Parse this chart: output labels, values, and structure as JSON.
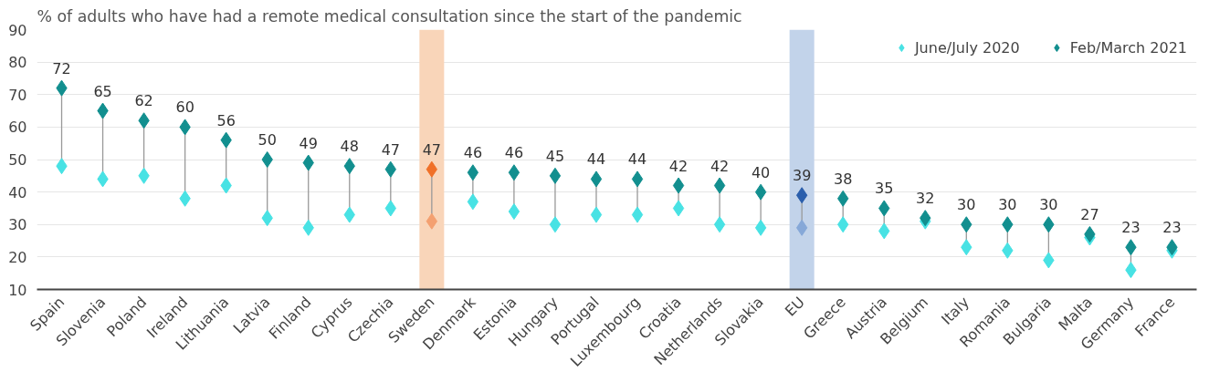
{
  "chart_data": {
    "type": "scatter",
    "title": "% of adults who have had a remote medical consultation since the start of the pandemic",
    "categories": [
      "Spain",
      "Slovenia",
      "Poland",
      "Ireland",
      "Lithuania",
      "Latvia",
      "Finland",
      "Cyprus",
      "Czechia",
      "Sweden",
      "Denmark",
      "Estonia",
      "Hungary",
      "Portugal",
      "Luxembourg",
      "Croatia",
      "Netherlands",
      "Slovakia",
      "EU",
      "Greece",
      "Austria",
      "Belgium",
      "Italy",
      "Romania",
      "Bulgaria",
      "Malta",
      "Germany",
      "France"
    ],
    "series": [
      {
        "name": "June/July 2020",
        "color": "#48e2e4",
        "colors": [
          "#48e2e4",
          "#48e2e4",
          "#48e2e4",
          "#48e2e4",
          "#48e2e4",
          "#48e2e4",
          "#48e2e4",
          "#48e2e4",
          "#48e2e4",
          "#f4a070",
          "#48e2e4",
          "#48e2e4",
          "#48e2e4",
          "#48e2e4",
          "#48e2e4",
          "#48e2e4",
          "#48e2e4",
          "#48e2e4",
          "#86a8d8",
          "#48e2e4",
          "#48e2e4",
          "#48e2e4",
          "#48e2e4",
          "#48e2e4",
          "#48e2e4",
          "#48e2e4",
          "#48e2e4",
          "#48e2e4"
        ],
        "values": [
          48,
          44,
          45,
          38,
          42,
          32,
          29,
          33,
          35,
          31,
          37,
          34,
          30,
          33,
          33,
          35,
          30,
          29,
          29,
          30,
          28,
          31,
          23,
          22,
          19,
          26,
          16,
          22
        ]
      },
      {
        "name": "Feb/March 2021",
        "color": "#128f8f",
        "colors": [
          "#128f8f",
          "#128f8f",
          "#128f8f",
          "#128f8f",
          "#128f8f",
          "#128f8f",
          "#128f8f",
          "#128f8f",
          "#128f8f",
          "#f07028",
          "#128f8f",
          "#128f8f",
          "#128f8f",
          "#128f8f",
          "#128f8f",
          "#128f8f",
          "#128f8f",
          "#128f8f",
          "#2a5eac",
          "#128f8f",
          "#128f8f",
          "#128f8f",
          "#128f8f",
          "#128f8f",
          "#128f8f",
          "#128f8f",
          "#128f8f",
          "#128f8f"
        ],
        "values": [
          72,
          65,
          62,
          60,
          56,
          50,
          49,
          48,
          47,
          47,
          46,
          46,
          45,
          44,
          44,
          42,
          42,
          40,
          39,
          38,
          35,
          32,
          30,
          30,
          30,
          27,
          23,
          23
        ],
        "data_labels": true
      }
    ],
    "bands": [
      {
        "axis": "x",
        "from": "Sweden",
        "to": "Sweden",
        "color": "#f9d5b9"
      },
      {
        "axis": "x",
        "from": "EU",
        "to": "EU",
        "color": "#c2d3ea"
      }
    ],
    "ylim": [
      10,
      90
    ],
    "yticks": [
      10,
      20,
      30,
      40,
      50,
      60,
      70,
      80,
      90
    ],
    "grid": "y",
    "legend": "top right",
    "marker": "diamond"
  }
}
